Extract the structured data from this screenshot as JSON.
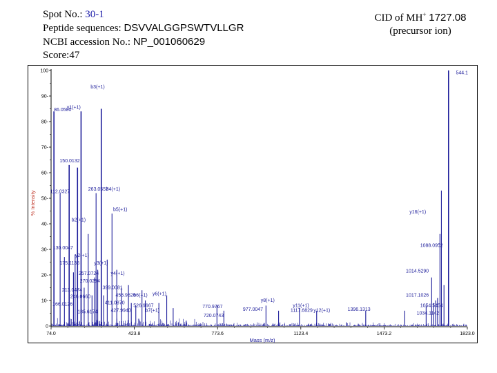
{
  "header": {
    "spot_label": "Spot No.:",
    "spot_value": "30-1",
    "peptide_label": "Peptide sequences:",
    "peptide_value": "DSVVALGGPSWTVLLGR",
    "accession_label": "NCBI accession No.:",
    "accession_value": "NP_001060629",
    "score_label": "Score:",
    "score_value": "47",
    "cid_label": "CID of MH",
    "cid_sup": "+",
    "cid_value": "1727.08",
    "precursor": "(precursor ion)"
  },
  "colors": {
    "trace": "#1c1c9a",
    "label": "#1c1c9a",
    "frame": "#000000"
  },
  "chart_data": {
    "type": "line",
    "title": "",
    "xlabel": "Mass (m/z)",
    "ylabel": "% Intensity",
    "xlim": [
      74.0,
      1823.0
    ],
    "ylim": [
      0,
      100
    ],
    "x_ticks": [
      "74.0",
      "423.8",
      "773.6",
      "1123.4",
      "1473.2",
      "1823.0"
    ],
    "y_ticks": [
      "0",
      "10",
      "20",
      "30",
      "40",
      "50",
      "60",
      "70",
      "80",
      "90",
      "100"
    ],
    "peaks": [
      {
        "mz": 86.05,
        "i": 84
      },
      {
        "mz": 112.03,
        "i": 52
      },
      {
        "mz": 130.0,
        "i": 27
      },
      {
        "mz": 150.01,
        "i": 63
      },
      {
        "mz": 168.0,
        "i": 21
      },
      {
        "mz": 175.0,
        "i": 28
      },
      {
        "mz": 185.0,
        "i": 62
      },
      {
        "mz": 200.0,
        "i": 84
      },
      {
        "mz": 213.0,
        "i": 15
      },
      {
        "mz": 230.0,
        "i": 36
      },
      {
        "mz": 246.0,
        "i": 12
      },
      {
        "mz": 257.0,
        "i": 19
      },
      {
        "mz": 263.06,
        "i": 52
      },
      {
        "mz": 270.0,
        "i": 22
      },
      {
        "mz": 285.0,
        "i": 85
      },
      {
        "mz": 295.0,
        "i": 12
      },
      {
        "mz": 310.0,
        "i": 26
      },
      {
        "mz": 330.0,
        "i": 44
      },
      {
        "mz": 350.0,
        "i": 22
      },
      {
        "mz": 370.0,
        "i": 15
      },
      {
        "mz": 399.0,
        "i": 16
      },
      {
        "mz": 411.0,
        "i": 9
      },
      {
        "mz": 430.0,
        "i": 8
      },
      {
        "mz": 455.96,
        "i": 14
      },
      {
        "mz": 470.0,
        "i": 10
      },
      {
        "mz": 526.97,
        "i": 9
      },
      {
        "mz": 560.0,
        "i": 12
      },
      {
        "mz": 587.0,
        "i": 7
      },
      {
        "mz": 770.97,
        "i": 8
      },
      {
        "mz": 800.0,
        "i": 6
      },
      {
        "mz": 977.0,
        "i": 8
      },
      {
        "mz": 1030.0,
        "i": 6
      },
      {
        "mz": 1117.68,
        "i": 7
      },
      {
        "mz": 1190.0,
        "i": 6
      },
      {
        "mz": 1396.13,
        "i": 6
      },
      {
        "mz": 1560.0,
        "i": 6
      },
      {
        "mz": 1650.0,
        "i": 8
      },
      {
        "mz": 1673.0,
        "i": 19
      },
      {
        "mz": 1681.0,
        "i": 9
      },
      {
        "mz": 1690.0,
        "i": 10
      },
      {
        "mz": 1698.0,
        "i": 11
      },
      {
        "mz": 1708.0,
        "i": 36
      },
      {
        "mz": 1714.0,
        "i": 53
      },
      {
        "mz": 1725.0,
        "i": 16
      },
      {
        "mz": 1744.1,
        "i": 100
      }
    ],
    "annotations": [
      {
        "text": "86.0500",
        "mz": 86.05,
        "i": 84
      },
      {
        "text": "y1(+1)",
        "mz": 140.0,
        "i": 85
      },
      {
        "text": "b3(+1)",
        "mz": 240.0,
        "i": 93
      },
      {
        "text": "150.0132",
        "mz": 110.0,
        "i": 64
      },
      {
        "text": "112.0327",
        "mz": 70.0,
        "i": 52
      },
      {
        "text": "263.0557",
        "mz": 230.0,
        "i": 53
      },
      {
        "text": "b4(+1)",
        "mz": 305.0,
        "i": 53
      },
      {
        "text": "b5(+1)",
        "mz": 335.0,
        "i": 45
      },
      {
        "text": "b2(+1)",
        "mz": 160.0,
        "i": 41
      },
      {
        "text": "130.0047",
        "mz": 82.0,
        "i": 30
      },
      {
        "text": "y2(+1)",
        "mz": 175.0,
        "i": 27
      },
      {
        "text": "175.1136",
        "mz": 110.0,
        "i": 24
      },
      {
        "text": "y3(+1)",
        "mz": 255.0,
        "i": 24
      },
      {
        "text": "257.0724",
        "mz": 190.0,
        "i": 20
      },
      {
        "text": "y4(+1)",
        "mz": 325.0,
        "i": 20
      },
      {
        "text": "270.0294",
        "mz": 195.0,
        "i": 17
      },
      {
        "text": "213.0474",
        "mz": 120.0,
        "i": 13.5
      },
      {
        "text": "399.0081",
        "mz": 290.0,
        "i": 14.5
      },
      {
        "text": "246.0660",
        "mz": 155.0,
        "i": 11
      },
      {
        "text": "455.9626",
        "mz": 345.0,
        "i": 11.5
      },
      {
        "text": "b6(+1)",
        "mz": 420.0,
        "i": 11.5
      },
      {
        "text": "y6(+1)",
        "mz": 500.0,
        "i": 12
      },
      {
        "text": "166.0126",
        "mz": 80.0,
        "i": 8
      },
      {
        "text": "411.0870",
        "mz": 300.0,
        "i": 8.5
      },
      {
        "text": "526.9667",
        "mz": 420.0,
        "i": 7.5
      },
      {
        "text": "185.6174",
        "mz": 185.0,
        "i": 5
      },
      {
        "text": "427.9940",
        "mz": 325.0,
        "i": 5.5
      },
      {
        "text": "b7(+1)",
        "mz": 470.0,
        "i": 5.5
      },
      {
        "text": "770.9767",
        "mz": 710.0,
        "i": 7
      },
      {
        "text": "720.0743",
        "mz": 715.0,
        "i": 3.5
      },
      {
        "text": "y8(+1)",
        "mz": 955.0,
        "i": 9.5
      },
      {
        "text": "977.0047",
        "mz": 880.0,
        "i": 6
      },
      {
        "text": "y11(+1)",
        "mz": 1090.0,
        "i": 7.5
      },
      {
        "text": "1117.6829",
        "mz": 1080.0,
        "i": 5.5
      },
      {
        "text": "y12(+1)",
        "mz": 1177.0,
        "i": 5.5
      },
      {
        "text": "1396.1313",
        "mz": 1320.0,
        "i": 6
      },
      {
        "text": "y16(+1)",
        "mz": 1580.0,
        "i": 44
      },
      {
        "text": "1088.0952",
        "mz": 1625.0,
        "i": 31
      },
      {
        "text": "1014.5290",
        "mz": 1565.0,
        "i": 21
      },
      {
        "text": "1017.1026",
        "mz": 1565.0,
        "i": 11.5
      },
      {
        "text": "1054.5454",
        "mz": 1625.0,
        "i": 7.5
      },
      {
        "text": "1034.1142",
        "mz": 1610.0,
        "i": 4.5
      },
      {
        "text": "544.1",
        "mz": 1775.0,
        "i": 98.5
      }
    ]
  }
}
